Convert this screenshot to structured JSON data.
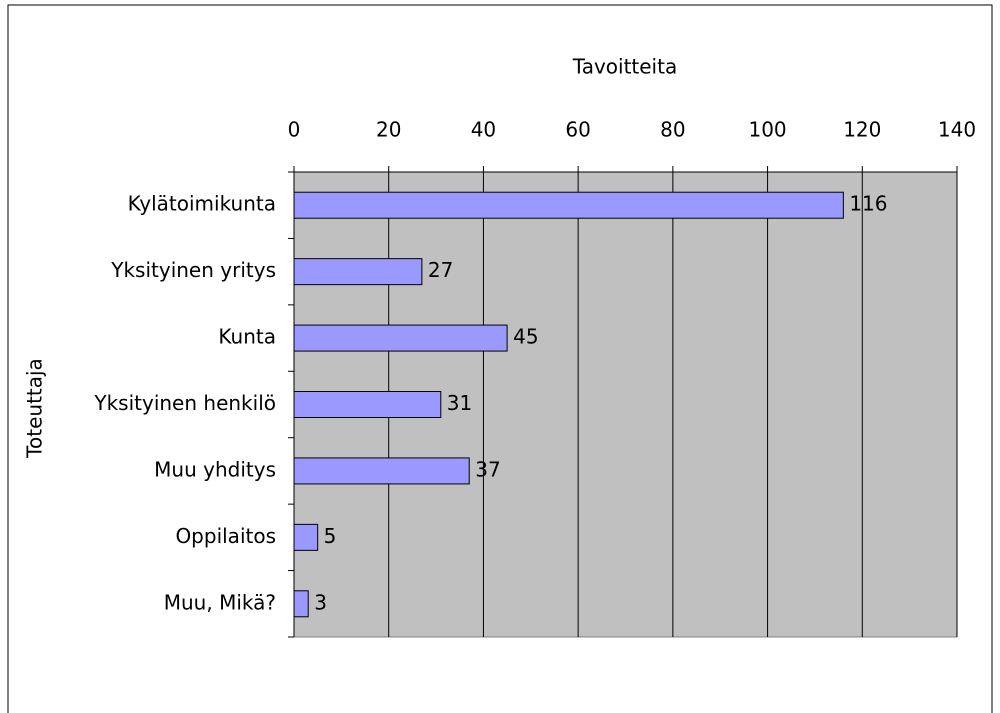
{
  "chart_data": {
    "type": "bar",
    "orientation": "horizontal",
    "title": "Tavoitteita",
    "ylabel": "Toteuttaja",
    "categories": [
      "Kylätoimikunta",
      "Yksityinen yritys",
      "Kunta",
      "Yksityinen henkilö",
      "Muu yhditys",
      "Oppilaitos",
      "Muu, Mikä?"
    ],
    "values": [
      116,
      27,
      45,
      31,
      37,
      5,
      3
    ],
    "color": "#9999ff",
    "plot_background": "#c0c0c0",
    "xlim": [
      0,
      140
    ],
    "xticks": [
      0,
      20,
      40,
      60,
      80,
      100,
      120,
      140
    ],
    "x_axis_position": "top",
    "grid": true
  }
}
